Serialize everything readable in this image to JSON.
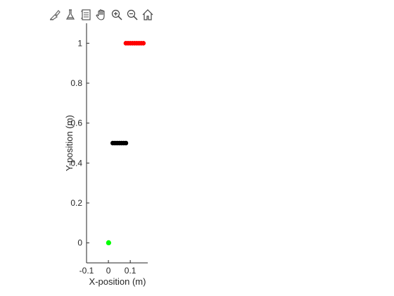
{
  "toolbar": {
    "icons": [
      "brush-icon",
      "data-tips-icon",
      "datacursor-icon",
      "pan-hand-icon",
      "zoom-in-icon",
      "zoom-out-icon",
      "home-icon"
    ]
  },
  "chart_data": {
    "type": "scatter",
    "xlabel": "X-position (m)",
    "ylabel": "Y-position (m)",
    "xlim": [
      -0.1,
      0.18
    ],
    "ylim": [
      -0.1,
      1.1
    ],
    "xticks": [
      -0.1,
      0,
      0.1
    ],
    "xtick_labels": [
      "-0.1",
      "0",
      "0.1"
    ],
    "yticks": [
      0,
      0.2,
      0.4,
      0.6,
      0.8,
      1
    ],
    "ytick_labels": [
      "0",
      "0.2",
      "0.4",
      "0.6",
      "0.8",
      "1"
    ],
    "grid": false,
    "series": [
      {
        "color": "#00ff00",
        "marker": "circle",
        "x": [
          0.0,
          0.002,
          0.001
        ],
        "y": [
          0.0,
          0.0,
          0.002
        ]
      },
      {
        "color": "#000000",
        "marker": "circle",
        "x": [
          0.02,
          0.03,
          0.04,
          0.05,
          0.06,
          0.07,
          0.08
        ],
        "y": [
          0.5,
          0.5,
          0.5,
          0.5,
          0.5,
          0.5,
          0.5
        ]
      },
      {
        "color": "#ff0000",
        "marker": "circle",
        "x": [
          0.08,
          0.09,
          0.1,
          0.11,
          0.12,
          0.13,
          0.14,
          0.15,
          0.16
        ],
        "y": [
          1.0,
          1.0,
          1.0,
          1.0,
          1.0,
          1.0,
          1.0,
          1.0,
          1.0
        ]
      }
    ]
  }
}
